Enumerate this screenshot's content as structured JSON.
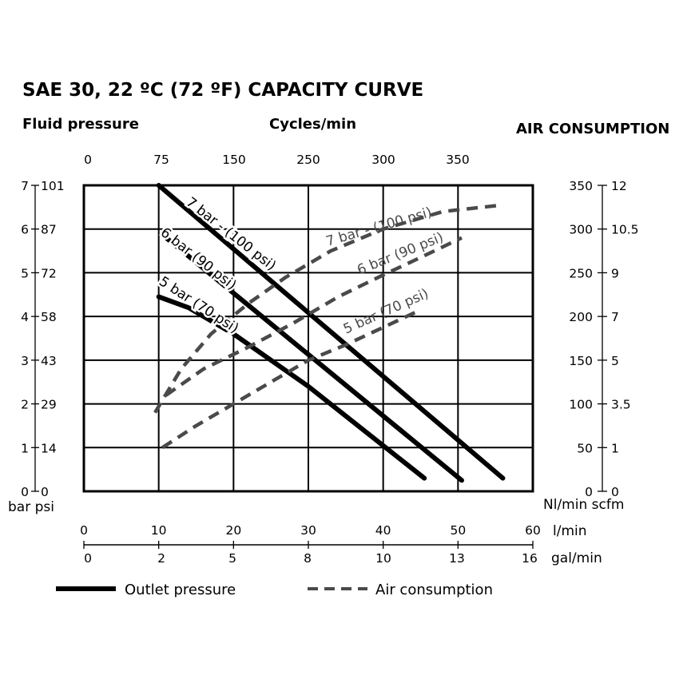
{
  "title": "SAE 30, 22 ºC (72 ºF) CAPACITY CURVE",
  "left_header": "Fluid pressure",
  "top_header": "Cycles/min",
  "right_header": "AIR CONSUMPTION",
  "left_axis": {
    "bar_ticks": [
      "0",
      "1",
      "2",
      "3",
      "4",
      "5",
      "6",
      "7"
    ],
    "psi_ticks": [
      "0",
      "14",
      "29",
      "43",
      "58",
      "72",
      "87",
      "101"
    ],
    "unit_label": "bar psi"
  },
  "right_axis": {
    "nl_ticks": [
      "0",
      "50",
      "100",
      "150",
      "200",
      "250",
      "300",
      "350"
    ],
    "scfm_ticks": [
      "0",
      "1",
      "3.5",
      "5",
      "7",
      "9",
      "10.5",
      "12"
    ],
    "unit_label": "Nl/min scfm"
  },
  "top_axis": {
    "ticks": [
      "0",
      "75",
      "150",
      "250",
      "300",
      "350"
    ]
  },
  "bottom_axis_lmin": {
    "ticks": [
      "0",
      "10",
      "20",
      "30",
      "40",
      "50",
      "60"
    ],
    "unit": "l/min"
  },
  "bottom_axis_galmin": {
    "ticks": [
      "0",
      "2",
      "5",
      "8",
      "10",
      "13",
      "16"
    ],
    "unit": "gal/min"
  },
  "legend": {
    "solid": "Outlet pressure",
    "dashed": "Air consumption"
  },
  "colors": {
    "outlet": "#000000",
    "air": "#4a4a4a",
    "grid": "#000000"
  },
  "chart_data": {
    "type": "line",
    "x_unit": "l/min",
    "xlim": [
      0,
      60
    ],
    "ylim": [
      0,
      7
    ],
    "grid": true,
    "legend_position": "bottom",
    "series": [
      {
        "name": "Outlet pressure",
        "label": "7 bar - (100 psi)",
        "style": "solid",
        "x": [
          10,
          56
        ],
        "y": [
          7.0,
          0.3
        ]
      },
      {
        "name": "Outlet pressure",
        "label": "6 bar (90 psi)",
        "style": "solid",
        "x": [
          11,
          50.5
        ],
        "y": [
          5.8,
          0.25
        ]
      },
      {
        "name": "Outlet pressure",
        "label": "5 bar (70 psi)",
        "style": "solid",
        "x": [
          10,
          14,
          20,
          30,
          45.5
        ],
        "y": [
          4.45,
          4.2,
          3.6,
          2.4,
          0.3
        ]
      },
      {
        "name": "Air consumption",
        "label": "7 bar - (100 psi)",
        "style": "dashed",
        "x": [
          9.5,
          13,
          17,
          22,
          27,
          33,
          40,
          48,
          56
        ],
        "y": [
          1.8,
          2.8,
          3.6,
          4.3,
          4.9,
          5.5,
          6.0,
          6.4,
          6.55
        ]
      },
      {
        "name": "Air consumption",
        "label": "6 bar (90 psi)",
        "style": "dashed",
        "x": [
          11,
          16,
          22,
          28,
          34,
          40,
          45,
          50.5
        ],
        "y": [
          2.2,
          2.8,
          3.3,
          3.85,
          4.45,
          4.95,
          5.35,
          5.8
        ]
      },
      {
        "name": "Air consumption",
        "label": "5 bar (70 psi)",
        "style": "dashed",
        "x": [
          10.5,
          15,
          20,
          25,
          30,
          35,
          40,
          45
        ],
        "y": [
          1.0,
          1.5,
          2.0,
          2.5,
          3.0,
          3.35,
          3.75,
          4.15
        ]
      }
    ]
  }
}
